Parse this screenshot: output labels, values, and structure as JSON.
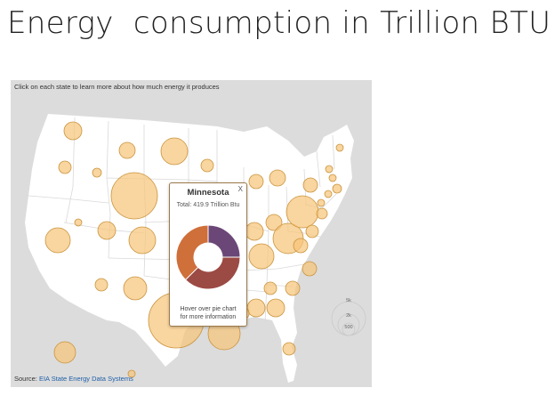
{
  "slide": {
    "title": "Energy  consumption in Trillion BTU"
  },
  "map": {
    "instruction": "Click on each state to learn more about how much energy it produces",
    "source_prefix": "Source: ",
    "source_link": "EIA State Energy Data Systems"
  },
  "popup": {
    "state": "Minnesota",
    "close": "X",
    "total": "Total: 419.9 Trillion Btu",
    "hint_line1": "Hover over pie chart",
    "hint_line2": "for more information",
    "segments": [
      {
        "share": 0.25,
        "color": "#6b4777"
      },
      {
        "share": 0.375,
        "color": "#9c4a44"
      },
      {
        "share": 0.375,
        "color": "#cf6f3a"
      }
    ]
  },
  "size_legend": {
    "large": "5k",
    "medium": "2k",
    "small": "500"
  },
  "colors": {
    "bubble": "#f7c57a",
    "map_bg": "#dcdcdc",
    "state": "#ffffff"
  }
}
